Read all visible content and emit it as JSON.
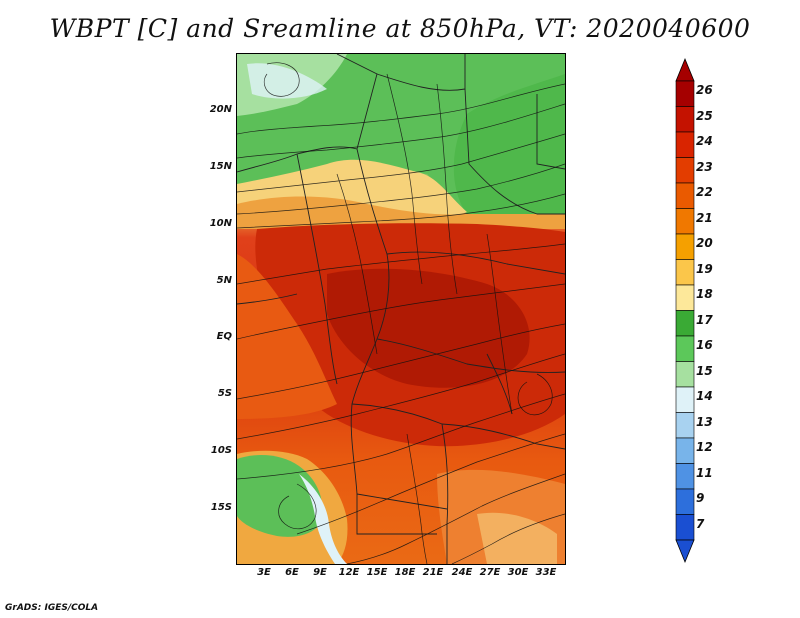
{
  "title": "WBPT [C] and Sreamline at 850hPa, VT: 2020040600",
  "map": {
    "lat_labels": [
      "20N",
      "15N",
      "10N",
      "5N",
      "EQ",
      "5S",
      "10S",
      "15S"
    ],
    "lon_labels": [
      "3E",
      "6E",
      "9E",
      "12E",
      "15E",
      "18E",
      "21E",
      "24E",
      "27E",
      "30E",
      "33E"
    ]
  },
  "colorbar": {
    "levels": [
      "26",
      "25",
      "24",
      "23",
      "22",
      "21",
      "20",
      "19",
      "18",
      "17",
      "16",
      "15",
      "14",
      "13",
      "12",
      "11",
      "9",
      "7"
    ],
    "colors": [
      "#a50000",
      "#c41200",
      "#d92400",
      "#e33d00",
      "#ea5a00",
      "#f07800",
      "#f5a000",
      "#fbc64a",
      "#fde89a",
      "#3aaa35",
      "#5cc85a",
      "#a6e0a0",
      "#dff2f8",
      "#a8d2f0",
      "#78b4ea",
      "#4f92e4",
      "#2d6fdc",
      "#1a4fd2"
    ]
  },
  "credit": "GrADS: IGES/COLA"
}
